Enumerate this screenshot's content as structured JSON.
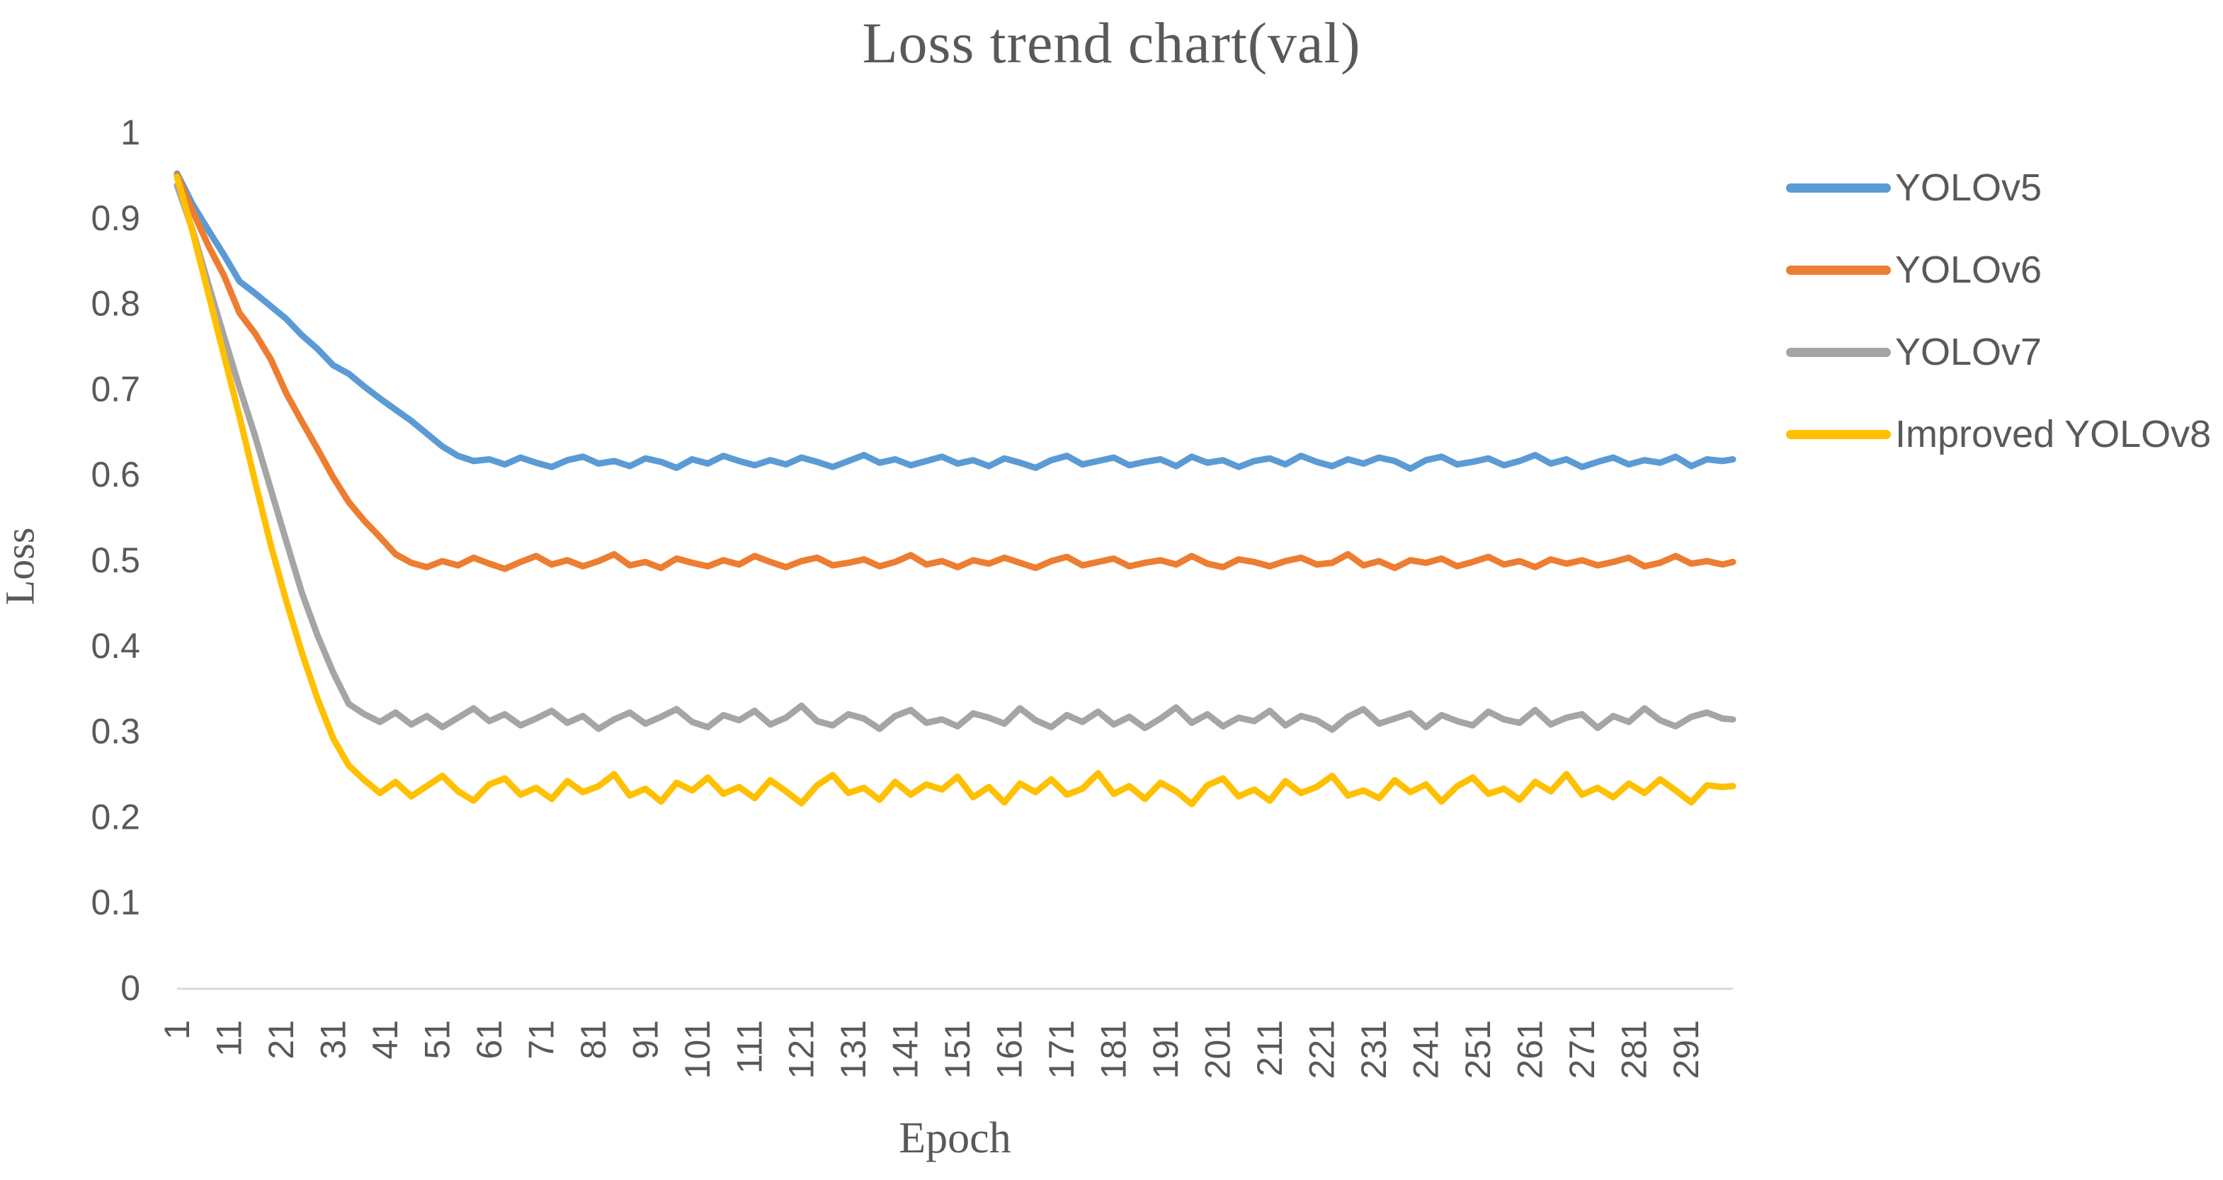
{
  "chart_data": {
    "type": "line",
    "title": "Loss trend chart(val)",
    "xlabel": "Epoch",
    "ylabel": "Loss",
    "x_range": [
      1,
      300
    ],
    "ylim": [
      0,
      1
    ],
    "grid": false,
    "plot_background": "#ffffff",
    "axis_line_color": "#d9d9d9",
    "label_color": "#595959",
    "legend_position": "right",
    "y_tick_values": [
      1,
      0.9,
      0.8,
      0.7,
      0.6,
      0.5,
      0.4,
      0.3,
      0.2,
      0.1,
      0
    ],
    "y_tick_labels": [
      "1",
      "0.9",
      "0.8",
      "0.7",
      "0.6",
      "0.5",
      "0.4",
      "0.3",
      "0.2",
      "0.1",
      "0"
    ],
    "x_tick_values": [
      1,
      11,
      21,
      31,
      41,
      51,
      61,
      71,
      81,
      91,
      101,
      111,
      121,
      131,
      141,
      151,
      161,
      171,
      181,
      191,
      201,
      211,
      221,
      231,
      241,
      251,
      261,
      271,
      281,
      291
    ],
    "x_tick_labels": [
      "1",
      "11",
      "21",
      "31",
      "41",
      "51",
      "61",
      "71",
      "81",
      "91",
      "101",
      "111",
      "121",
      "131",
      "141",
      "151",
      "161",
      "171",
      "181",
      "191",
      "201",
      "211",
      "221",
      "231",
      "241",
      "251",
      "261",
      "271",
      "281",
      "291"
    ],
    "epochs": [
      1,
      4,
      7,
      10,
      13,
      16,
      19,
      22,
      25,
      28,
      31,
      34,
      37,
      40,
      43,
      46,
      49,
      52,
      55,
      58,
      61,
      64,
      67,
      70,
      73,
      76,
      79,
      82,
      85,
      88,
      91,
      94,
      97,
      100,
      103,
      106,
      109,
      112,
      115,
      118,
      121,
      124,
      127,
      130,
      133,
      136,
      139,
      142,
      145,
      148,
      151,
      154,
      157,
      160,
      163,
      166,
      169,
      172,
      175,
      178,
      181,
      184,
      187,
      190,
      193,
      196,
      199,
      202,
      205,
      208,
      211,
      214,
      217,
      220,
      223,
      226,
      229,
      232,
      235,
      238,
      241,
      244,
      247,
      250,
      253,
      256,
      259,
      262,
      265,
      268,
      271,
      274,
      277,
      280,
      283,
      286,
      289,
      292,
      295,
      298,
      300
    ],
    "series": [
      {
        "name": "YOLOv5",
        "color": "#5B9BD5",
        "values": [
          0.952,
          0.916,
          0.886,
          0.857,
          0.826,
          0.812,
          0.797,
          0.782,
          0.763,
          0.747,
          0.728,
          0.718,
          0.703,
          0.689,
          0.676,
          0.663,
          0.648,
          0.633,
          0.622,
          0.616,
          0.618,
          0.612,
          0.62,
          0.614,
          0.609,
          0.617,
          0.621,
          0.613,
          0.616,
          0.61,
          0.619,
          0.615,
          0.608,
          0.618,
          0.613,
          0.622,
          0.616,
          0.611,
          0.617,
          0.612,
          0.62,
          0.615,
          0.609,
          0.616,
          0.623,
          0.614,
          0.618,
          0.611,
          0.616,
          0.621,
          0.613,
          0.617,
          0.61,
          0.619,
          0.614,
          0.608,
          0.617,
          0.622,
          0.612,
          0.616,
          0.62,
          0.611,
          0.615,
          0.618,
          0.61,
          0.621,
          0.614,
          0.617,
          0.609,
          0.616,
          0.619,
          0.612,
          0.622,
          0.615,
          0.61,
          0.618,
          0.613,
          0.62,
          0.616,
          0.607,
          0.617,
          0.621,
          0.612,
          0.615,
          0.619,
          0.611,
          0.616,
          0.623,
          0.613,
          0.618,
          0.609,
          0.615,
          0.62,
          0.612,
          0.617,
          0.614,
          0.621,
          0.61,
          0.618,
          0.616,
          0.618
        ]
      },
      {
        "name": "YOLOv6",
        "color": "#ED7D31",
        "values": [
          0.95,
          0.908,
          0.868,
          0.833,
          0.789,
          0.765,
          0.735,
          0.695,
          0.662,
          0.63,
          0.597,
          0.568,
          0.546,
          0.527,
          0.507,
          0.497,
          0.492,
          0.499,
          0.494,
          0.503,
          0.496,
          0.49,
          0.498,
          0.505,
          0.495,
          0.5,
          0.493,
          0.499,
          0.507,
          0.494,
          0.498,
          0.491,
          0.502,
          0.497,
          0.493,
          0.5,
          0.495,
          0.505,
          0.498,
          0.492,
          0.499,
          0.503,
          0.494,
          0.497,
          0.501,
          0.493,
          0.498,
          0.506,
          0.495,
          0.499,
          0.492,
          0.5,
          0.496,
          0.503,
          0.497,
          0.491,
          0.499,
          0.504,
          0.494,
          0.498,
          0.502,
          0.493,
          0.497,
          0.5,
          0.495,
          0.505,
          0.496,
          0.492,
          0.501,
          0.498,
          0.493,
          0.499,
          0.503,
          0.495,
          0.497,
          0.507,
          0.494,
          0.499,
          0.491,
          0.5,
          0.497,
          0.502,
          0.493,
          0.498,
          0.504,
          0.495,
          0.499,
          0.492,
          0.501,
          0.496,
          0.5,
          0.494,
          0.498,
          0.503,
          0.493,
          0.497,
          0.505,
          0.496,
          0.499,
          0.495,
          0.498
        ]
      },
      {
        "name": "YOLOv7",
        "color": "#A5A5A5",
        "values": [
          0.938,
          0.886,
          0.823,
          0.762,
          0.702,
          0.645,
          0.583,
          0.522,
          0.462,
          0.412,
          0.369,
          0.332,
          0.32,
          0.311,
          0.322,
          0.308,
          0.318,
          0.305,
          0.316,
          0.327,
          0.312,
          0.32,
          0.307,
          0.315,
          0.324,
          0.31,
          0.318,
          0.303,
          0.314,
          0.322,
          0.309,
          0.317,
          0.326,
          0.311,
          0.305,
          0.319,
          0.313,
          0.324,
          0.308,
          0.316,
          0.33,
          0.312,
          0.307,
          0.32,
          0.315,
          0.303,
          0.318,
          0.325,
          0.31,
          0.314,
          0.306,
          0.321,
          0.316,
          0.309,
          0.327,
          0.313,
          0.305,
          0.319,
          0.311,
          0.323,
          0.308,
          0.317,
          0.304,
          0.315,
          0.328,
          0.31,
          0.32,
          0.306,
          0.316,
          0.312,
          0.324,
          0.307,
          0.318,
          0.313,
          0.302,
          0.317,
          0.326,
          0.309,
          0.315,
          0.321,
          0.305,
          0.319,
          0.312,
          0.307,
          0.323,
          0.314,
          0.31,
          0.325,
          0.308,
          0.316,
          0.32,
          0.304,
          0.318,
          0.311,
          0.327,
          0.313,
          0.306,
          0.317,
          0.322,
          0.315,
          0.314
        ]
      },
      {
        "name": "Improved YOLOv8",
        "color": "#FFC000",
        "values": [
          0.948,
          0.884,
          0.812,
          0.74,
          0.668,
          0.592,
          0.518,
          0.452,
          0.392,
          0.338,
          0.292,
          0.26,
          0.243,
          0.228,
          0.241,
          0.224,
          0.236,
          0.248,
          0.23,
          0.219,
          0.238,
          0.245,
          0.226,
          0.234,
          0.221,
          0.242,
          0.229,
          0.236,
          0.25,
          0.225,
          0.233,
          0.218,
          0.24,
          0.231,
          0.246,
          0.227,
          0.235,
          0.222,
          0.243,
          0.23,
          0.216,
          0.237,
          0.249,
          0.228,
          0.234,
          0.22,
          0.241,
          0.226,
          0.238,
          0.232,
          0.247,
          0.223,
          0.235,
          0.217,
          0.239,
          0.229,
          0.244,
          0.226,
          0.233,
          0.251,
          0.227,
          0.236,
          0.221,
          0.24,
          0.23,
          0.215,
          0.237,
          0.245,
          0.224,
          0.232,
          0.219,
          0.242,
          0.228,
          0.235,
          0.248,
          0.225,
          0.231,
          0.222,
          0.243,
          0.229,
          0.238,
          0.218,
          0.236,
          0.246,
          0.227,
          0.233,
          0.22,
          0.241,
          0.23,
          0.25,
          0.226,
          0.234,
          0.223,
          0.239,
          0.228,
          0.244,
          0.231,
          0.217,
          0.237,
          0.235,
          0.236
        ]
      }
    ]
  }
}
